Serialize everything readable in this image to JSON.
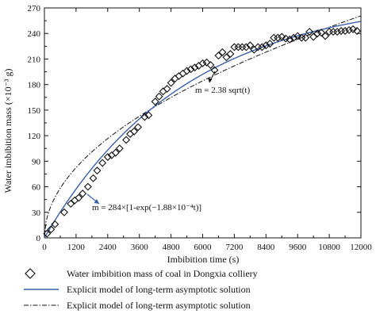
{
  "chart_data": {
    "type": "scatter",
    "xlabel": "Imbibition time (s)",
    "ylabel": "Water imbibition mass (×10⁻³ g)",
    "xlim": [
      0,
      12000
    ],
    "ylim": [
      0,
      270
    ],
    "x_ticks": [
      "0",
      "1200",
      "2400",
      "3600",
      "4800",
      "6000",
      "7200",
      "8400",
      "9600",
      "10800",
      "12000"
    ],
    "y_ticks": [
      "0",
      "30",
      "60",
      "90",
      "120",
      "150",
      "180",
      "210",
      "240",
      "270"
    ],
    "series": [
      {
        "name": "Water imbibition mass of coal in Dongxia colliery",
        "kind": "markers",
        "marker": "diamond",
        "color": "#111111",
        "points": [
          [
            100,
            5
          ],
          [
            250,
            10
          ],
          [
            400,
            16
          ],
          [
            750,
            30
          ],
          [
            1000,
            40
          ],
          [
            1150,
            44
          ],
          [
            1300,
            47
          ],
          [
            1450,
            52
          ],
          [
            1650,
            60
          ],
          [
            1850,
            70
          ],
          [
            2000,
            79
          ],
          [
            2200,
            88
          ],
          [
            2400,
            95
          ],
          [
            2550,
            97
          ],
          [
            2700,
            100
          ],
          [
            2850,
            105
          ],
          [
            3100,
            115
          ],
          [
            3250,
            122
          ],
          [
            3400,
            125
          ],
          [
            3550,
            130
          ],
          [
            3800,
            142
          ],
          [
            3950,
            144
          ],
          [
            4200,
            160
          ],
          [
            4350,
            166
          ],
          [
            4500,
            172
          ],
          [
            4650,
            175
          ],
          [
            4800,
            182
          ],
          [
            4950,
            187
          ],
          [
            5100,
            190
          ],
          [
            5250,
            193
          ],
          [
            5400,
            196
          ],
          [
            5550,
            198
          ],
          [
            5700,
            200
          ],
          [
            5850,
            202
          ],
          [
            6000,
            205
          ],
          [
            6150,
            206
          ],
          [
            6300,
            203
          ],
          [
            6450,
            197
          ],
          [
            6600,
            214
          ],
          [
            6750,
            218
          ],
          [
            6900,
            212
          ],
          [
            7050,
            216
          ],
          [
            7200,
            224
          ],
          [
            7350,
            224
          ],
          [
            7500,
            224
          ],
          [
            7650,
            224
          ],
          [
            7800,
            226
          ],
          [
            7950,
            221
          ],
          [
            8100,
            224
          ],
          [
            8250,
            224
          ],
          [
            8400,
            226
          ],
          [
            8550,
            228
          ],
          [
            8700,
            235
          ],
          [
            8850,
            235
          ],
          [
            9000,
            236
          ],
          [
            9150,
            234
          ],
          [
            9300,
            233
          ],
          [
            9450,
            235
          ],
          [
            9600,
            237
          ],
          [
            9750,
            235
          ],
          [
            9900,
            235
          ],
          [
            10050,
            242
          ],
          [
            10200,
            236
          ],
          [
            10350,
            240
          ],
          [
            10500,
            241
          ],
          [
            10650,
            237
          ],
          [
            10800,
            242
          ],
          [
            10950,
            242
          ],
          [
            11100,
            242
          ],
          [
            11250,
            243
          ],
          [
            11400,
            243
          ],
          [
            11550,
            244
          ],
          [
            11700,
            245
          ],
          [
            11850,
            243
          ]
        ]
      },
      {
        "name": "Explicit model of long-term asymptotic solution",
        "kind": "line",
        "style": "solid",
        "color": "#3a5fa8",
        "model": "m = 284×[1-exp(−1.88×10⁻⁴t)]"
      },
      {
        "name": "Explicit model of long-term asymptotic solution",
        "kind": "line",
        "style": "dash-dot",
        "color": "#111111",
        "model": "m = 2.38 sqrt(t)"
      }
    ],
    "annotations": [
      {
        "text": "m = 2.38 sqrt(t)",
        "x": 6600,
        "y": 180
      },
      {
        "text": "m = 284×[1-exp(−1.88×10⁻⁴t)]",
        "x": 1900,
        "y": 45
      }
    ],
    "legend_placement": "bottom",
    "grid": false
  }
}
